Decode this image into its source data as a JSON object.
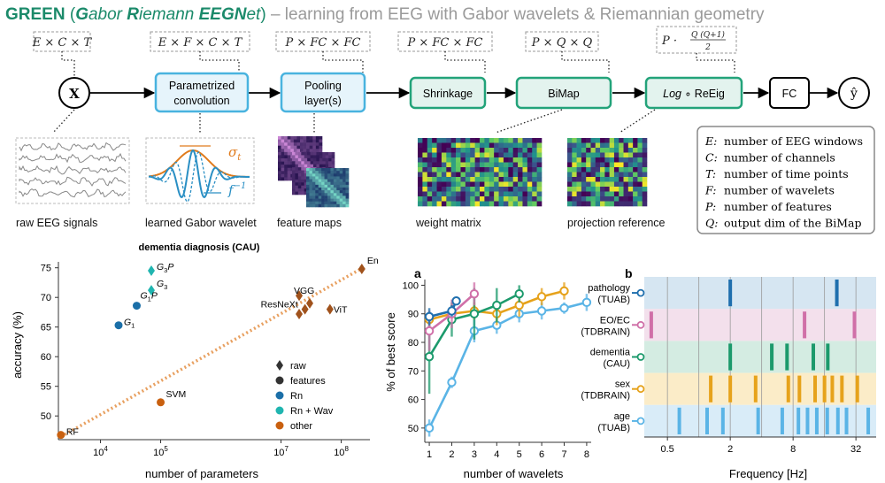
{
  "title": {
    "green": "GREEN",
    "open": " (",
    "g": "G",
    "g_rest": "abor ",
    "r": "R",
    "r_rest": "iemann ",
    "e": "EEGN",
    "e_rest": "et",
    "close": ")",
    "subtitle": " – learning from EEG with Gabor wavelets & Riemannian geometry"
  },
  "pipeline": {
    "input": "X",
    "output": "ŷ",
    "shapes": [
      "E × C × T",
      "E × F × C × T",
      "P × FC × FC",
      "P × FC × FC",
      "P × Q × Q"
    ],
    "log_shape_prefix": "P ·",
    "log_shape_num": "Q (Q+1)",
    "log_shape_den": "2",
    "conv_label_1": "Parametrized",
    "conv_label_2": "convolution",
    "pool_label_1": "Pooling",
    "pool_label_2": "layer(s)",
    "shrink_label": "Shrinkage",
    "bimap_label": "BiMap",
    "log_label": "Log",
    "reeig_label": "∘ ReEig",
    "fc_label": "FC",
    "sigma": "σ",
    "sigma_sub": "t",
    "finv": "f",
    "finv_sup": "−1"
  },
  "captions": [
    "raw EEG signals",
    "learned Gabor wavelet",
    "feature maps",
    "weight matrix",
    "projection  reference"
  ],
  "legend_box": [
    {
      "sym": "E",
      "text": "number of EEG windows"
    },
    {
      "sym": "C",
      "text": "number of channels"
    },
    {
      "sym": "T",
      "text": "number of time points"
    },
    {
      "sym": "F",
      "text": "number of wavelets"
    },
    {
      "sym": "P",
      "text": "number of features"
    },
    {
      "sym": "Q",
      "text": "output dim of the BiMap"
    }
  ],
  "chart_data": [
    {
      "type": "scatter",
      "title": "dementia diagnosis (CAU)",
      "xlabel": "number of parameters",
      "ylabel": "accuracy (%)",
      "xscale": "log",
      "xlim": [
        2000,
        300000000
      ],
      "ylim": [
        46,
        76
      ],
      "yticks": [
        "50",
        "55",
        "60",
        "65",
        "70",
        "75"
      ],
      "xticks": [
        {
          "base": "10",
          "exp": "4",
          "v": 10000
        },
        {
          "base": "10",
          "exp": "5",
          "v": 100000
        },
        {
          "base": "10",
          "exp": "7",
          "v": 10000000
        },
        {
          "base": "10",
          "exp": "8",
          "v": 100000000
        }
      ],
      "points": [
        {
          "label": "G",
          "sub": "3",
          "suffix": "P",
          "x": 70000,
          "y": 74.5,
          "kind": "wav"
        },
        {
          "label": "G",
          "sub": "3",
          "suffix": "",
          "x": 70000,
          "y": 71.2,
          "kind": "wav"
        },
        {
          "label": "G",
          "sub": "1",
          "suffix": "P",
          "x": 40000,
          "y": 68.6,
          "kind": "rn"
        },
        {
          "label": "G",
          "sub": "1",
          "suffix": "",
          "x": 20000,
          "y": 65.3,
          "kind": "rn"
        },
        {
          "label": "VGG",
          "sub": "",
          "suffix": "",
          "x": 20000000,
          "y": 70.3,
          "kind": "raw"
        },
        {
          "label": "",
          "sub": "",
          "suffix": "",
          "x": 20000000,
          "y": 67.2,
          "kind": "raw"
        },
        {
          "label": "ResNeXt",
          "sub": "",
          "suffix": "",
          "x": 25000000,
          "y": 68.0,
          "kind": "raw"
        },
        {
          "label": "",
          "sub": "",
          "suffix": "",
          "x": 30000000,
          "y": 69.0,
          "kind": "raw"
        },
        {
          "label": "ViT",
          "sub": "",
          "suffix": "",
          "x": 65000000,
          "y": 68.0,
          "kind": "raw"
        },
        {
          "label": "En",
          "sub": "",
          "suffix": "",
          "x": 220000000,
          "y": 74.8,
          "kind": "raw"
        },
        {
          "label": "SVM",
          "sub": "",
          "suffix": "",
          "x": 100000,
          "y": 52.3,
          "kind": "other"
        },
        {
          "label": "RF",
          "sub": "",
          "suffix": "",
          "x": 2200,
          "y": 46.8,
          "kind": "other"
        }
      ],
      "legend": [
        {
          "name": "raw",
          "marker": "diamond"
        },
        {
          "name": "features",
          "marker": "circle"
        },
        {
          "name": "Rn",
          "marker": "circle"
        },
        {
          "name": "Rn + Wav",
          "marker": "circle"
        },
        {
          "name": "other",
          "marker": "circle"
        }
      ],
      "colors": {
        "raw": "#a0521c",
        "features": "#333333",
        "rn": "#1b6fa8",
        "wav": "#20b5b0",
        "other": "#c9600f",
        "trend": "#e8a060"
      }
    },
    {
      "type": "line",
      "panel": "a",
      "xlabel": "number of wavelets",
      "ylabel": "% of best score",
      "xlim": [
        0.8,
        8.2
      ],
      "ylim": [
        45,
        102
      ],
      "xticks": [
        "1",
        "2",
        "3",
        "4",
        "5",
        "6",
        "7",
        "8"
      ],
      "yticks": [
        "50",
        "60",
        "70",
        "80",
        "90",
        "100"
      ],
      "series": [
        {
          "name": "pathology (TUAB)",
          "color": "#1f6fae",
          "x": [
            1,
            2,
            2.2
          ],
          "y": [
            89,
            91,
            94.5
          ],
          "err": [
            3,
            2,
            1.5
          ]
        },
        {
          "name": "EO/EC (TDBRAIN)",
          "color": "#d070a8",
          "x": [
            1,
            2,
            3
          ],
          "y": [
            84,
            90,
            97
          ],
          "err": [
            7,
            5,
            4
          ]
        },
        {
          "name": "dementia (CAU)",
          "color": "#1c9a6c",
          "x": [
            1,
            2,
            3,
            4,
            5
          ],
          "y": [
            75,
            88,
            90,
            93,
            97
          ],
          "err": [
            13,
            6,
            9,
            6,
            3
          ]
        },
        {
          "name": "sex (TDBRAIN)",
          "color": "#e6a21b",
          "x": [
            1,
            2,
            3,
            4,
            5,
            6,
            7
          ],
          "y": [
            88,
            90,
            91,
            90,
            93,
            96,
            98
          ],
          "err": [
            3,
            3,
            3,
            4,
            4,
            3,
            3
          ]
        },
        {
          "name": "age (TUAB)",
          "color": "#5ab4e6",
          "x": [
            1,
            2,
            3,
            4,
            5,
            6,
            7,
            8
          ],
          "y": [
            50,
            66,
            84,
            86,
            90,
            91,
            92,
            94
          ],
          "err": [
            3,
            2,
            4,
            3,
            3,
            3,
            2,
            3
          ]
        }
      ]
    },
    {
      "type": "heatmap",
      "panel": "b",
      "xlabel": "Frequency [Hz]",
      "xscale": "log2",
      "xlim": [
        0.3,
        50
      ],
      "xticks": [
        "0.5",
        "2",
        "8",
        "32"
      ],
      "tick_values": [
        0.5,
        2,
        8,
        32
      ],
      "rows": [
        {
          "name1": "pathology",
          "name2": "(TUAB)",
          "color": "#1f6fae",
          "bg": "#d6e6f2",
          "freqs": [
            2.0,
            21
          ]
        },
        {
          "name1": "EO/EC",
          "name2": "(TDBRAIN)",
          "color": "#d070a8",
          "bg": "#f3e0ec",
          "freqs": [
            0.35,
            10.3,
            31
          ]
        },
        {
          "name1": "dementia",
          "name2": "(CAU)",
          "color": "#1c9a6c",
          "bg": "#d4ece2",
          "freqs": [
            2.0,
            5.0,
            7.0,
            12.5,
            17.2
          ]
        },
        {
          "name1": "sex",
          "name2": "(TDBRAIN)",
          "color": "#e6a21b",
          "bg": "#fbecc8",
          "freqs": [
            1.3,
            2.0,
            3.5,
            7.2,
            9.2,
            13.0,
            16.0,
            19.0,
            23.5,
            33
          ]
        },
        {
          "name1": "age",
          "name2": "(TUAB)",
          "color": "#5ab4e6",
          "bg": "#d9ecf8",
          "freqs": [
            0.65,
            1.2,
            1.7,
            3.7,
            6.3,
            9.0,
            11.0,
            13.5,
            17.0,
            21.5,
            26,
            42
          ]
        }
      ]
    }
  ]
}
